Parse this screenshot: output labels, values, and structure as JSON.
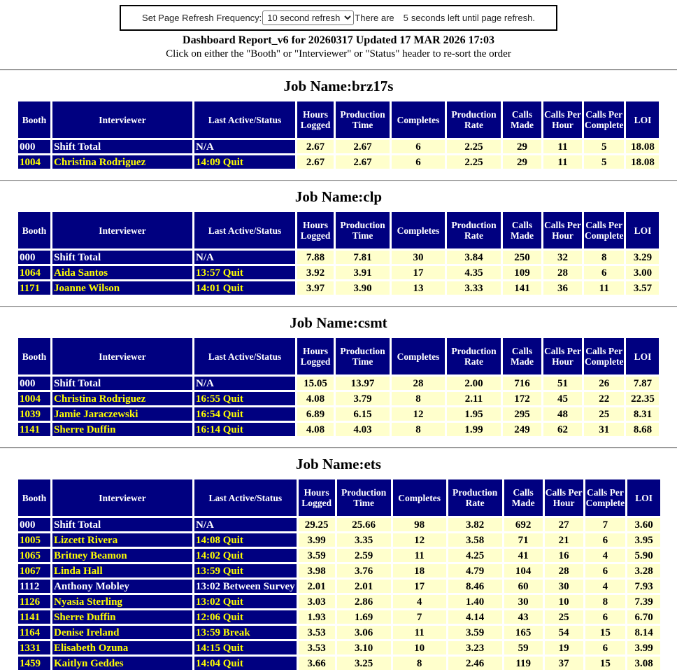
{
  "refresh_bar": {
    "label": "Set Page Refresh Frequency:",
    "select_value": "10 second refresh",
    "countdown_prefix": "There are",
    "countdown_seconds": "5",
    "countdown_suffix": "seconds left until page refresh."
  },
  "header": {
    "title": "Dashboard Report_v6 for 20260317 Updated 17 MAR 2026 17:03",
    "subtitle": "Click on either the \"Booth\" or \"Interviewer\" or \"Status\" header to re-sort the order"
  },
  "columns": [
    "Booth",
    "Interviewer",
    "Last Active/Status",
    "Hours Logged",
    "Production Time",
    "Completes",
    "Production Rate",
    "Calls Made",
    "Calls Per Hour",
    "Calls Per Complete",
    "LOI"
  ],
  "colors": {
    "header_cell": "#000080",
    "numeric_cell": "#FFFFCC",
    "active_row_text": "#FFFFFF",
    "inactive_row_text": "#FFFF00",
    "numeric_text": "#000000"
  },
  "jobs": [
    {
      "title": "Job Name:brz17s",
      "rows": [
        {
          "booth": "000",
          "interviewer": "Shift Total",
          "status": "N/A",
          "style": "total",
          "values": [
            "2.67",
            "2.67",
            "6",
            "2.25",
            "29",
            "11",
            "5",
            "18.08"
          ]
        },
        {
          "booth": "1004",
          "interviewer": "Christina Rodriguez",
          "status": "14:09 Quit",
          "style": "inactive",
          "values": [
            "2.67",
            "2.67",
            "6",
            "2.25",
            "29",
            "11",
            "5",
            "18.08"
          ]
        }
      ]
    },
    {
      "title": "Job Name:clp",
      "rows": [
        {
          "booth": "000",
          "interviewer": "Shift Total",
          "status": "N/A",
          "style": "total",
          "values": [
            "7.88",
            "7.81",
            "30",
            "3.84",
            "250",
            "32",
            "8",
            "3.29"
          ]
        },
        {
          "booth": "1064",
          "interviewer": "Aida Santos",
          "status": "13:57 Quit",
          "style": "inactive",
          "values": [
            "3.92",
            "3.91",
            "17",
            "4.35",
            "109",
            "28",
            "6",
            "3.00"
          ]
        },
        {
          "booth": "1171",
          "interviewer": "Joanne Wilson",
          "status": "14:01 Quit",
          "style": "inactive",
          "values": [
            "3.97",
            "3.90",
            "13",
            "3.33",
            "141",
            "36",
            "11",
            "3.57"
          ]
        }
      ]
    },
    {
      "title": "Job Name:csmt",
      "rows": [
        {
          "booth": "000",
          "interviewer": "Shift Total",
          "status": "N/A",
          "style": "total",
          "values": [
            "15.05",
            "13.97",
            "28",
            "2.00",
            "716",
            "51",
            "26",
            "7.87"
          ]
        },
        {
          "booth": "1004",
          "interviewer": "Christina Rodriguez",
          "status": "16:55 Quit",
          "style": "inactive",
          "values": [
            "4.08",
            "3.79",
            "8",
            "2.11",
            "172",
            "45",
            "22",
            "22.35"
          ]
        },
        {
          "booth": "1039",
          "interviewer": "Jamie Jaraczewski",
          "status": "16:54 Quit",
          "style": "inactive",
          "values": [
            "6.89",
            "6.15",
            "12",
            "1.95",
            "295",
            "48",
            "25",
            "8.31"
          ]
        },
        {
          "booth": "1141",
          "interviewer": "Sherre Duffin",
          "status": "16:14 Quit",
          "style": "inactive",
          "values": [
            "4.08",
            "4.03",
            "8",
            "1.99",
            "249",
            "62",
            "31",
            "8.68"
          ]
        }
      ]
    },
    {
      "title": "Job Name:ets",
      "rows": [
        {
          "booth": "000",
          "interviewer": "Shift Total",
          "status": "N/A",
          "style": "total",
          "values": [
            "29.25",
            "25.66",
            "98",
            "3.82",
            "692",
            "27",
            "7",
            "3.60"
          ]
        },
        {
          "booth": "1005",
          "interviewer": "Lizcett Rivera",
          "status": "14:08 Quit",
          "style": "inactive",
          "values": [
            "3.99",
            "3.35",
            "12",
            "3.58",
            "71",
            "21",
            "6",
            "3.95"
          ]
        },
        {
          "booth": "1065",
          "interviewer": "Britney Beamon",
          "status": "14:02 Quit",
          "style": "inactive",
          "values": [
            "3.59",
            "2.59",
            "11",
            "4.25",
            "41",
            "16",
            "4",
            "5.90"
          ]
        },
        {
          "booth": "1067",
          "interviewer": "Linda Hall",
          "status": "13:59 Quit",
          "style": "inactive",
          "values": [
            "3.98",
            "3.76",
            "18",
            "4.79",
            "104",
            "28",
            "6",
            "3.28"
          ]
        },
        {
          "booth": "1112",
          "interviewer": "Anthony Mobley",
          "status": "13:02 Between Survey",
          "style": "active",
          "values": [
            "2.01",
            "2.01",
            "17",
            "8.46",
            "60",
            "30",
            "4",
            "7.93"
          ]
        },
        {
          "booth": "1126",
          "interviewer": "Nyasia Sterling",
          "status": "13:02 Quit",
          "style": "inactive",
          "values": [
            "3.03",
            "2.86",
            "4",
            "1.40",
            "30",
            "10",
            "8",
            "7.39"
          ]
        },
        {
          "booth": "1141",
          "interviewer": "Sherre Duffin",
          "status": "12:06 Quit",
          "style": "inactive",
          "values": [
            "1.93",
            "1.69",
            "7",
            "4.14",
            "43",
            "25",
            "6",
            "6.70"
          ]
        },
        {
          "booth": "1164",
          "interviewer": "Denise Ireland",
          "status": "13:59 Break",
          "style": "inactive",
          "values": [
            "3.53",
            "3.06",
            "11",
            "3.59",
            "165",
            "54",
            "15",
            "8.14"
          ]
        },
        {
          "booth": "1331",
          "interviewer": "Elisabeth Ozuna",
          "status": "14:15 Quit",
          "style": "inactive",
          "values": [
            "3.53",
            "3.10",
            "10",
            "3.23",
            "59",
            "19",
            "6",
            "3.99"
          ]
        },
        {
          "booth": "1459",
          "interviewer": "Kaitlyn Geddes",
          "status": "14:04 Quit",
          "style": "inactive",
          "values": [
            "3.66",
            "3.25",
            "8",
            "2.46",
            "119",
            "37",
            "15",
            "3.08"
          ]
        }
      ]
    }
  ]
}
